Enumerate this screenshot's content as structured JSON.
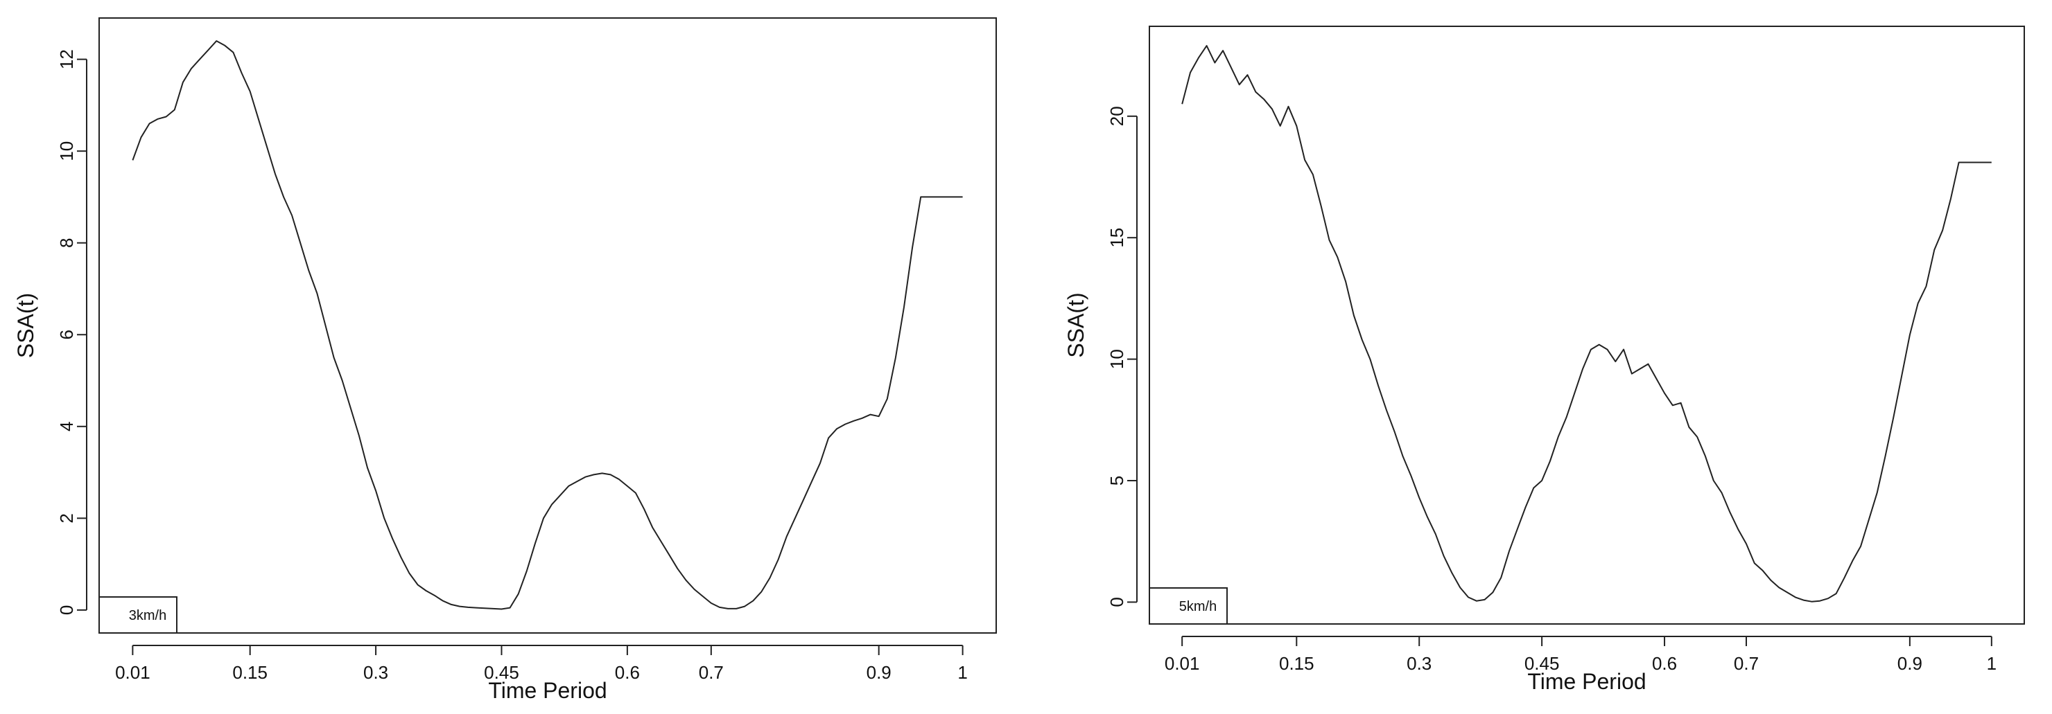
{
  "chart_data": [
    {
      "type": "line",
      "xlabel": "Time Period",
      "ylabel": "SSA(t)",
      "xticks": [
        {
          "value": 0.01,
          "label": "0.01"
        },
        {
          "value": 0.15,
          "label": "0.15"
        },
        {
          "value": 0.3,
          "label": "0.3"
        },
        {
          "value": 0.45,
          "label": "0.45"
        },
        {
          "value": 0.6,
          "label": "0.6"
        },
        {
          "value": 0.7,
          "label": "0.7"
        },
        {
          "value": 0.9,
          "label": "0.9"
        },
        {
          "value": 1,
          "label": "1"
        }
      ],
      "yticks": [
        0,
        2,
        4,
        6,
        8,
        10,
        12
      ],
      "xlim": [
        -0.03,
        1.04
      ],
      "ylim": [
        -0.5,
        12.9
      ],
      "legend": "3km/h",
      "series": [
        {
          "x": [
            0.01,
            0.02,
            0.03,
            0.04,
            0.05,
            0.06,
            0.07,
            0.08,
            0.09,
            0.1,
            0.11,
            0.12,
            0.13,
            0.14,
            0.15,
            0.16,
            0.17,
            0.18,
            0.19,
            0.2,
            0.21,
            0.22,
            0.23,
            0.24,
            0.25,
            0.26,
            0.27,
            0.28,
            0.29,
            0.3,
            0.31,
            0.32,
            0.33,
            0.34,
            0.35,
            0.36,
            0.37,
            0.38,
            0.39,
            0.4,
            0.41,
            0.42,
            0.43,
            0.44,
            0.45,
            0.46,
            0.47,
            0.48,
            0.49,
            0.5,
            0.51,
            0.52,
            0.53,
            0.54,
            0.55,
            0.56,
            0.57,
            0.58,
            0.59,
            0.6,
            0.61,
            0.62,
            0.63,
            0.64,
            0.65,
            0.66,
            0.67,
            0.68,
            0.69,
            0.7,
            0.71,
            0.72,
            0.73,
            0.74,
            0.75,
            0.76,
            0.77,
            0.78,
            0.79,
            0.8,
            0.81,
            0.82,
            0.83,
            0.84,
            0.85,
            0.86,
            0.87,
            0.88,
            0.89,
            0.9,
            0.91,
            0.92,
            0.93,
            0.94,
            0.95,
            0.96,
            0.97,
            0.98,
            0.99,
            1.0
          ],
          "y": [
            9.8,
            10.3,
            10.6,
            10.7,
            10.75,
            10.9,
            11.5,
            11.8,
            12.0,
            12.2,
            12.4,
            12.3,
            12.15,
            11.7,
            11.3,
            10.7,
            10.1,
            9.5,
            9.0,
            8.6,
            8.0,
            7.4,
            6.9,
            6.2,
            5.5,
            5.0,
            4.4,
            3.8,
            3.1,
            2.6,
            2.0,
            1.55,
            1.15,
            0.8,
            0.55,
            0.42,
            0.32,
            0.2,
            0.12,
            0.08,
            0.06,
            0.05,
            0.04,
            0.03,
            0.02,
            0.05,
            0.35,
            0.85,
            1.45,
            2.0,
            2.3,
            2.5,
            2.7,
            2.8,
            2.9,
            2.95,
            2.98,
            2.95,
            2.85,
            2.7,
            2.55,
            2.2,
            1.8,
            1.5,
            1.2,
            0.9,
            0.65,
            0.45,
            0.3,
            0.15,
            0.06,
            0.03,
            0.03,
            0.08,
            0.2,
            0.4,
            0.7,
            1.1,
            1.6,
            2.0,
            2.4,
            2.8,
            3.2,
            3.75,
            3.95,
            4.05,
            4.12,
            4.18,
            4.26,
            4.22,
            4.6,
            5.5,
            6.6,
            7.9,
            9.0,
            9.0,
            9.0,
            9.0,
            9.0,
            9.0
          ]
        }
      ]
    },
    {
      "type": "line",
      "xlabel": "Time Period",
      "ylabel": "SSA(t)",
      "xticks": [
        {
          "value": 0.01,
          "label": "0.01"
        },
        {
          "value": 0.15,
          "label": "0.15"
        },
        {
          "value": 0.3,
          "label": "0.3"
        },
        {
          "value": 0.45,
          "label": "0.45"
        },
        {
          "value": 0.6,
          "label": "0.6"
        },
        {
          "value": 0.7,
          "label": "0.7"
        },
        {
          "value": 0.9,
          "label": "0.9"
        },
        {
          "value": 1,
          "label": "1"
        }
      ],
      "yticks": [
        0,
        5,
        10,
        15,
        20
      ],
      "xlim": [
        -0.03,
        1.04
      ],
      "ylim": [
        -0.9,
        23.7
      ],
      "legend": "5km/h",
      "series": [
        {
          "x": [
            0.01,
            0.02,
            0.03,
            0.04,
            0.05,
            0.06,
            0.07,
            0.08,
            0.09,
            0.1,
            0.11,
            0.12,
            0.13,
            0.14,
            0.15,
            0.16,
            0.17,
            0.18,
            0.19,
            0.2,
            0.21,
            0.22,
            0.23,
            0.24,
            0.25,
            0.26,
            0.27,
            0.28,
            0.29,
            0.3,
            0.31,
            0.32,
            0.33,
            0.34,
            0.35,
            0.36,
            0.37,
            0.38,
            0.39,
            0.4,
            0.41,
            0.42,
            0.43,
            0.44,
            0.45,
            0.46,
            0.47,
            0.48,
            0.49,
            0.5,
            0.51,
            0.52,
            0.53,
            0.54,
            0.55,
            0.56,
            0.57,
            0.58,
            0.59,
            0.6,
            0.61,
            0.62,
            0.63,
            0.64,
            0.65,
            0.66,
            0.67,
            0.68,
            0.69,
            0.7,
            0.71,
            0.72,
            0.73,
            0.74,
            0.75,
            0.76,
            0.77,
            0.78,
            0.79,
            0.8,
            0.81,
            0.82,
            0.83,
            0.84,
            0.85,
            0.86,
            0.87,
            0.88,
            0.89,
            0.9,
            0.91,
            0.92,
            0.93,
            0.94,
            0.95,
            0.96,
            0.97,
            0.98,
            0.99,
            1.0
          ],
          "y": [
            20.5,
            21.8,
            22.4,
            22.9,
            22.2,
            22.7,
            22.0,
            21.3,
            21.7,
            21.0,
            20.7,
            20.3,
            19.6,
            20.4,
            19.6,
            18.2,
            17.6,
            16.3,
            14.9,
            14.2,
            13.2,
            11.8,
            10.8,
            10.0,
            8.9,
            7.9,
            7.0,
            6.0,
            5.2,
            4.3,
            3.5,
            2.8,
            1.9,
            1.2,
            0.6,
            0.2,
            0.05,
            0.1,
            0.4,
            1.0,
            2.1,
            3.0,
            3.9,
            4.7,
            5.0,
            5.8,
            6.8,
            7.6,
            8.6,
            9.6,
            10.4,
            10.6,
            10.4,
            9.9,
            10.4,
            9.4,
            9.6,
            9.8,
            9.2,
            8.6,
            8.1,
            8.2,
            7.2,
            6.8,
            6.0,
            5.0,
            4.5,
            3.7,
            3.0,
            2.4,
            1.6,
            1.3,
            0.9,
            0.6,
            0.4,
            0.2,
            0.08,
            0.02,
            0.05,
            0.15,
            0.35,
            1.0,
            1.7,
            2.3,
            3.4,
            4.5,
            6.0,
            7.6,
            9.3,
            11.0,
            12.3,
            13.0,
            14.5,
            15.3,
            16.6,
            18.1,
            18.1,
            18.1,
            18.1,
            18.1
          ]
        }
      ]
    }
  ]
}
